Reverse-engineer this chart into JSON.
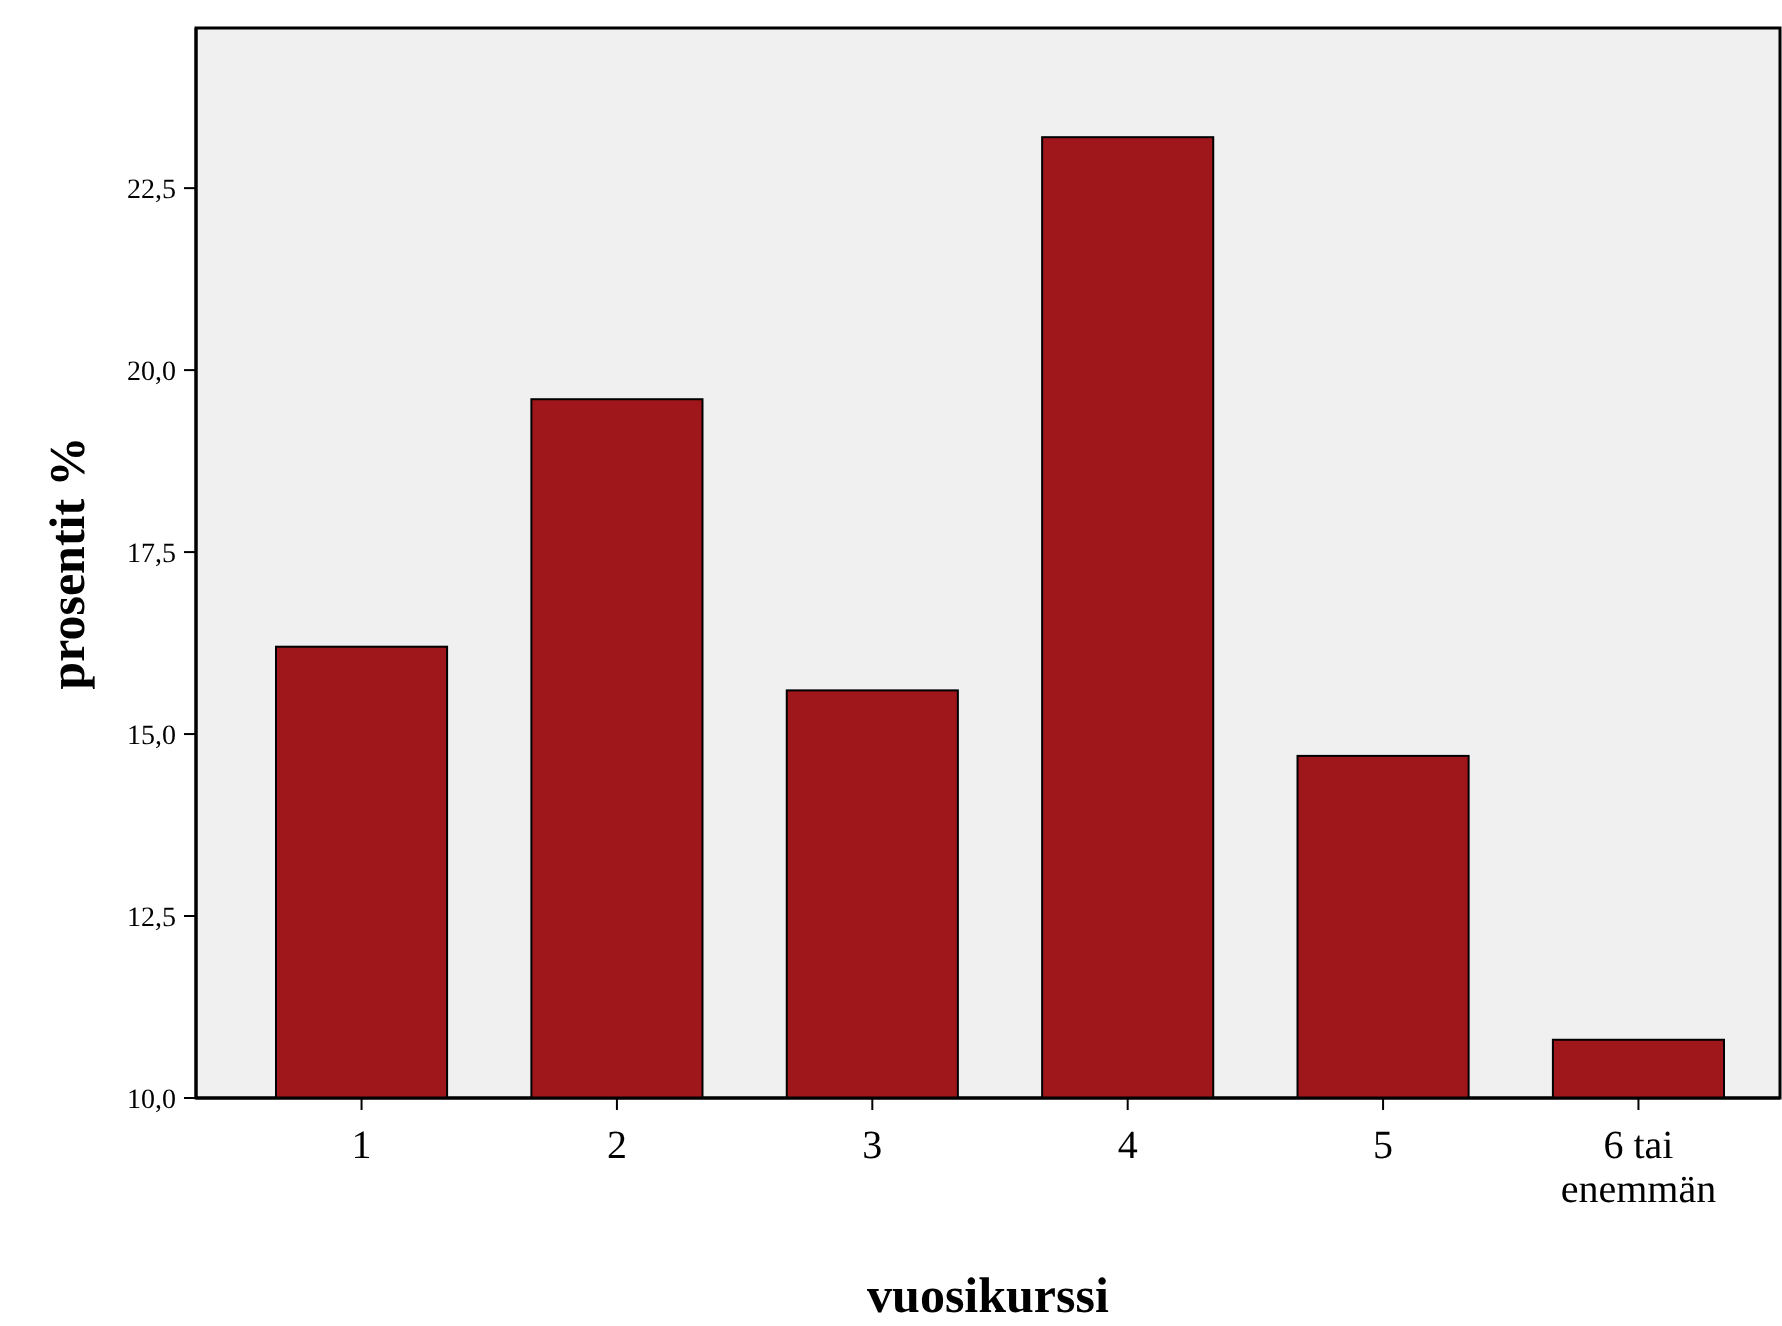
{
  "chart_data": {
    "type": "bar",
    "xlabel": "vuosikurssi",
    "ylabel": "prosentit %",
    "categories": [
      "1",
      "2",
      "3",
      "4",
      "5",
      "6 tai enemmän"
    ],
    "values": [
      16.2,
      19.6,
      15.6,
      23.2,
      14.7,
      10.8
    ],
    "color": "#a0171b",
    "ylim": [
      10,
      24.7
    ],
    "yticks": [
      {
        "value": 10,
        "label": "10,0"
      },
      {
        "value": 12.5,
        "label": "12,5"
      },
      {
        "value": 15,
        "label": "15,0"
      },
      {
        "value": 17.5,
        "label": "17,5"
      },
      {
        "value": 20,
        "label": "20,0"
      },
      {
        "value": 22.5,
        "label": "22,5"
      }
    ],
    "grid": false
  }
}
